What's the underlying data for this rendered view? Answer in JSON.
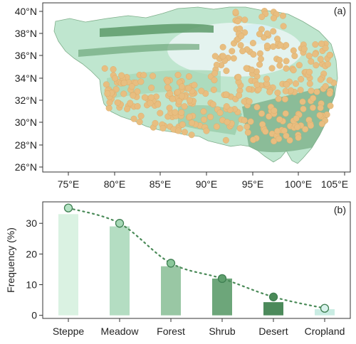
{
  "map_panel": {
    "panel_label": "(a)",
    "lon_ticks": [
      "75°E",
      "80°E",
      "85°E",
      "90°E",
      "95°E",
      "100°E",
      "105°E"
    ],
    "lat_ticks": [
      "40°N",
      "38°N",
      "36°N",
      "34°N",
      "32°N",
      "30°N",
      "28°N",
      "26°N"
    ],
    "colors": {
      "site_dots": "#e8be80",
      "steppe": "#cfeedd",
      "meadow": "#a9d8b8",
      "forest": "#5d9a6a",
      "desert": "#e4f3ef",
      "lake": "#d8f0f2"
    }
  },
  "chart_data": {
    "type": "bar",
    "panel_label": "(b)",
    "categories": [
      "Steppe",
      "Meadow",
      "Forest",
      "Shrub",
      "Desert",
      "Cropland"
    ],
    "values": [
      33,
      29,
      16,
      12,
      4.3,
      2
    ],
    "dot_values": [
      35,
      30,
      17,
      12,
      6,
      2.3
    ],
    "ylabel": "Frequency (%)",
    "yticks": [
      0,
      10,
      20,
      30
    ],
    "ylim": [
      -1,
      37
    ],
    "bar_colors": [
      "#daf2e2",
      "#b4ddc2",
      "#99c7a4",
      "#6da67a",
      "#4c8a5b",
      "#c9ece3"
    ],
    "dot_colors": [
      "#b4e3c4",
      "#a6d8b6",
      "#8ac79a",
      "#5f9f6d",
      "#4a8a58",
      "#d8f2ec"
    ],
    "dot_stroke": "#3f7f52",
    "line_color": "#4a8a58"
  }
}
